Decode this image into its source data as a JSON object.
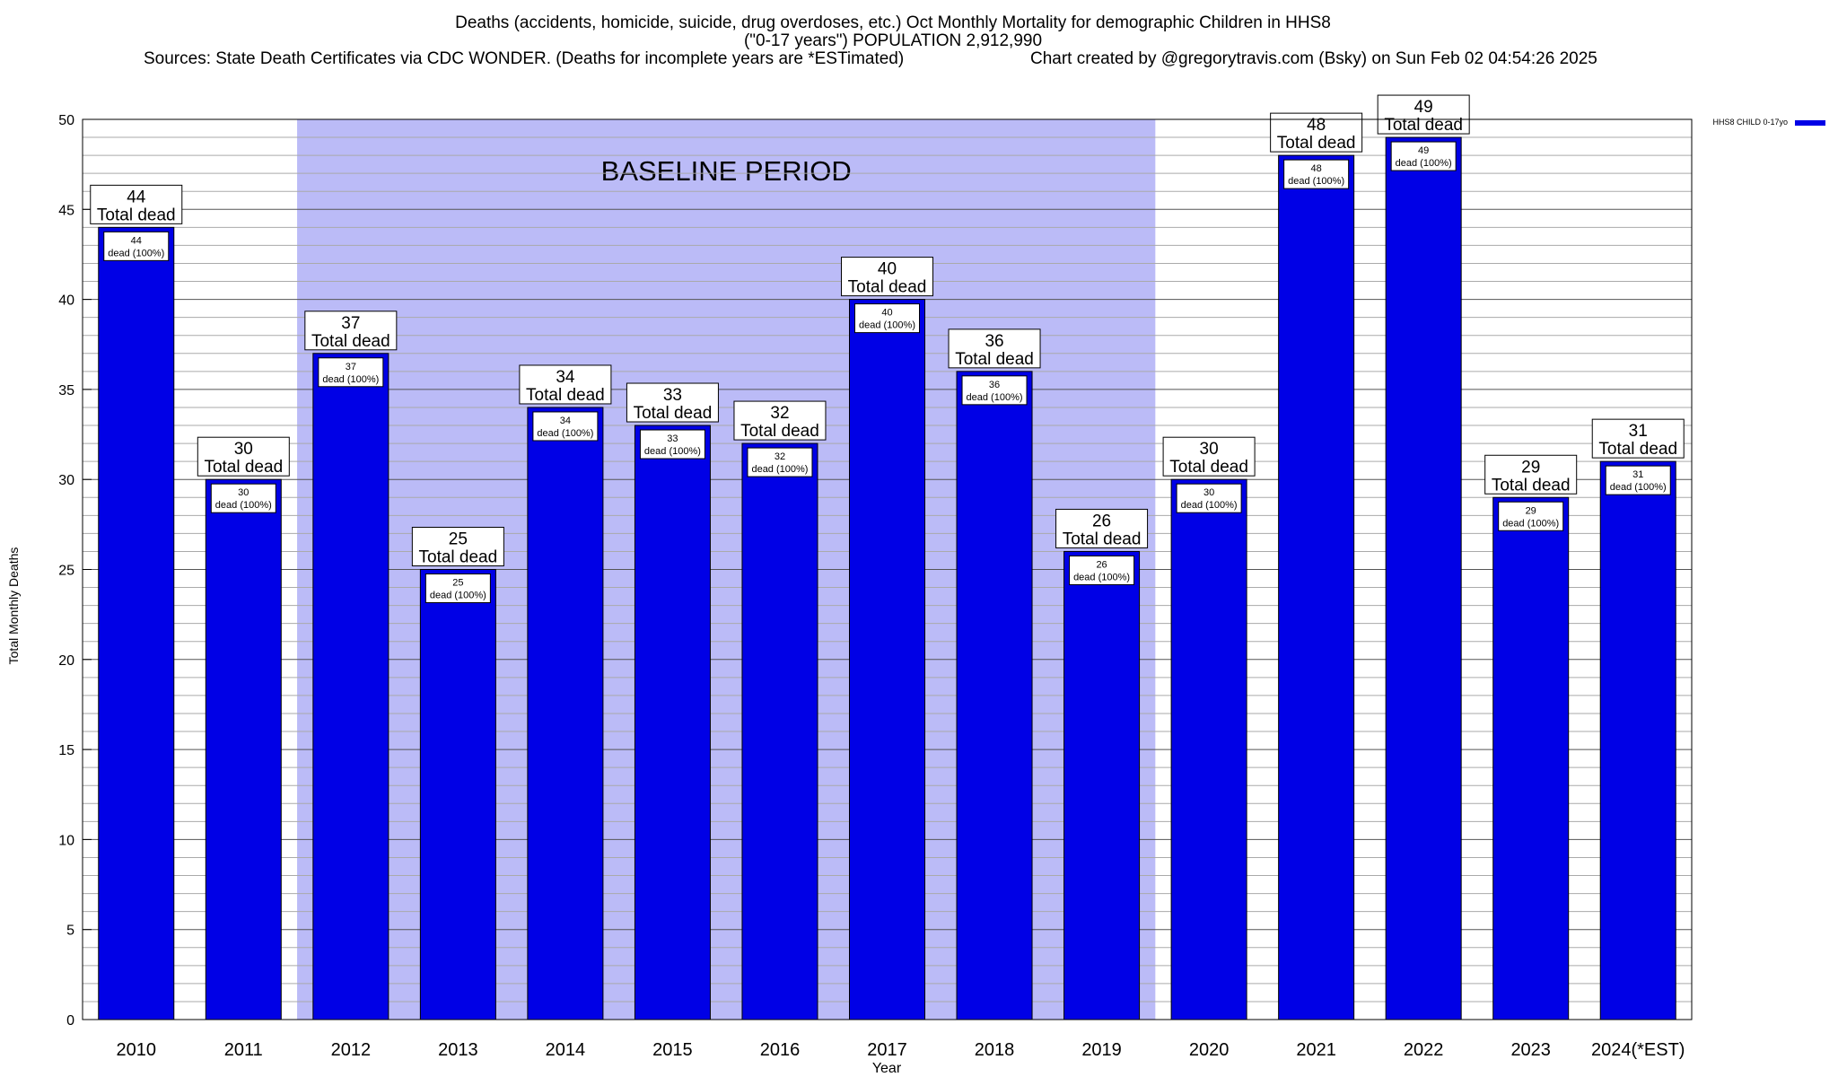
{
  "chart_data": {
    "type": "bar",
    "title": "Deaths (accidents, homicide, suicide, drug overdoses, etc.) Oct Monthly Mortality for demographic Children in HHS8",
    "subtitle": "(\"0-17 years\") POPULATION 2,912,990",
    "source": "Sources: State Death Certificates via CDC WONDER. (Deaths for incomplete years are *ESTimated)",
    "credit": "Chart created by @gregorytravis.com (Bsky) on Sun Feb 02 04:54:26 2025",
    "xlabel": "Year",
    "ylabel": "Total Monthly Deaths",
    "ylim": [
      0,
      50
    ],
    "yticks": [
      0,
      5,
      10,
      15,
      20,
      25,
      30,
      35,
      40,
      45,
      50
    ],
    "grid": true,
    "legend_position": "top-right",
    "categories": [
      "2010",
      "2011",
      "2012",
      "2013",
      "2014",
      "2015",
      "2016",
      "2017",
      "2018",
      "2019",
      "2020",
      "2021",
      "2022",
      "2023",
      "2024(*EST)"
    ],
    "series": [
      {
        "name": "HHS8 CHILD 0-17yo",
        "color": "#0000e6",
        "values": [
          44,
          30,
          37,
          25,
          34,
          33,
          32,
          40,
          36,
          26,
          30,
          48,
          49,
          29,
          31
        ]
      }
    ],
    "total_label_suffix": "Total dead",
    "segment_label_suffix": "dead (100%)",
    "baseline_period": {
      "label": "BASELINE PERIOD",
      "start": "2012",
      "end": "2019",
      "color": "#bbbbf7"
    }
  }
}
